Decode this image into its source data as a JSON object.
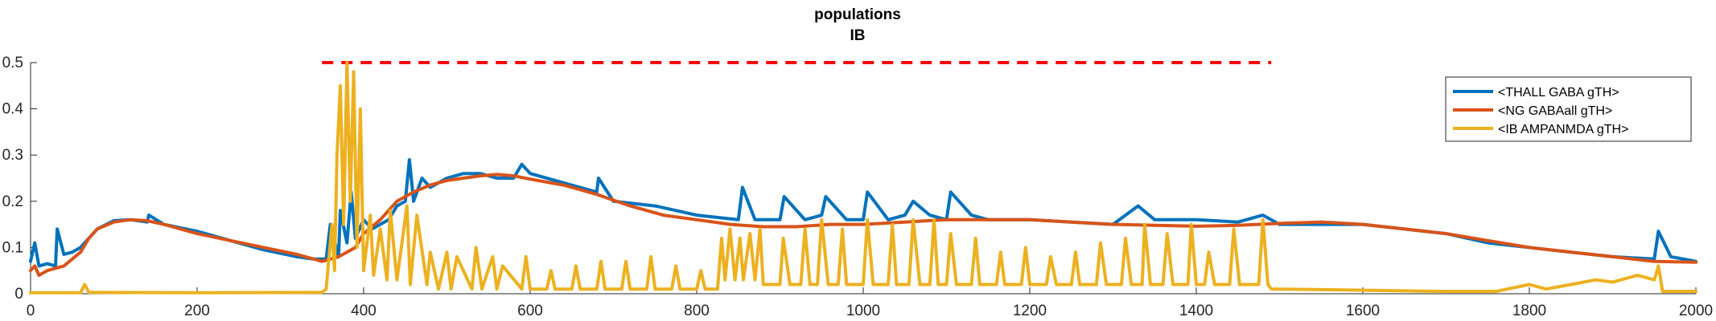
{
  "chart_data": {
    "type": "line",
    "title": "populations",
    "subtitle": "IB",
    "xlabel": "",
    "ylabel": "",
    "xlim": [
      0,
      2000
    ],
    "ylim": [
      0,
      0.5
    ],
    "grid": false,
    "legend_position": "top-right",
    "xticks": [
      {
        "value": 0,
        "label": "0"
      },
      {
        "value": 200,
        "label": "200"
      },
      {
        "value": 400,
        "label": "400"
      },
      {
        "value": 600,
        "label": "600"
      },
      {
        "value": 800,
        "label": "800"
      },
      {
        "value": 1000,
        "label": "1000"
      },
      {
        "value": 1200,
        "label": "1200"
      },
      {
        "value": 1400,
        "label": "1400"
      },
      {
        "value": 1600,
        "label": "1600"
      },
      {
        "value": 1800,
        "label": "1800"
      },
      {
        "value": 2000,
        "label": "2000"
      }
    ],
    "yticks": [
      {
        "value": 0,
        "label": "0"
      },
      {
        "value": 0.1,
        "label": "0.1"
      },
      {
        "value": 0.2,
        "label": "0.2"
      },
      {
        "value": 0.3,
        "label": "0.3"
      },
      {
        "value": 0.4,
        "label": "0.4"
      },
      {
        "value": 0.5,
        "label": "0.5"
      }
    ],
    "reference_line": {
      "y": 0.5,
      "x": [
        350,
        1490
      ],
      "color": "#ff0000",
      "style": "dashed"
    },
    "series": [
      {
        "name": "<THALL GABA gTH>",
        "color": "#0072bd",
        "x": [
          0,
          5,
          10,
          20,
          30,
          32,
          40,
          50,
          60,
          70,
          80,
          100,
          120,
          140,
          142,
          160,
          200,
          240,
          280,
          320,
          340,
          355,
          360,
          370,
          372,
          380,
          385,
          390,
          400,
          410,
          420,
          430,
          440,
          450,
          455,
          460,
          470,
          480,
          500,
          520,
          540,
          560,
          580,
          590,
          600,
          640,
          680,
          682,
          700,
          750,
          800,
          850,
          855,
          870,
          900,
          905,
          930,
          950,
          955,
          980,
          1000,
          1005,
          1030,
          1050,
          1060,
          1080,
          1100,
          1105,
          1130,
          1150,
          1200,
          1250,
          1300,
          1330,
          1350,
          1400,
          1450,
          1480,
          1500,
          1550,
          1600,
          1650,
          1700,
          1750,
          1800,
          1850,
          1900,
          1950,
          1955,
          1970,
          2000
        ],
        "y": [
          0.07,
          0.11,
          0.06,
          0.065,
          0.06,
          0.14,
          0.085,
          0.09,
          0.1,
          0.12,
          0.14,
          0.158,
          0.16,
          0.155,
          0.17,
          0.15,
          0.135,
          0.115,
          0.095,
          0.08,
          0.075,
          0.075,
          0.15,
          0.08,
          0.18,
          0.11,
          0.22,
          0.12,
          0.16,
          0.14,
          0.15,
          0.16,
          0.19,
          0.2,
          0.29,
          0.2,
          0.25,
          0.23,
          0.25,
          0.26,
          0.26,
          0.25,
          0.25,
          0.28,
          0.26,
          0.24,
          0.22,
          0.25,
          0.2,
          0.19,
          0.17,
          0.16,
          0.23,
          0.16,
          0.16,
          0.21,
          0.16,
          0.17,
          0.21,
          0.16,
          0.16,
          0.22,
          0.16,
          0.17,
          0.2,
          0.17,
          0.16,
          0.22,
          0.17,
          0.16,
          0.16,
          0.155,
          0.15,
          0.19,
          0.16,
          0.16,
          0.155,
          0.17,
          0.15,
          0.15,
          0.15,
          0.14,
          0.13,
          0.11,
          0.1,
          0.09,
          0.08,
          0.075,
          0.135,
          0.08,
          0.07
        ]
      },
      {
        "name": "<NG GABAall gTH>",
        "color": "#d95319",
        "x": [
          0,
          5,
          10,
          20,
          30,
          40,
          50,
          60,
          70,
          80,
          100,
          120,
          140,
          160,
          200,
          240,
          280,
          320,
          350,
          370,
          380,
          390,
          400,
          420,
          440,
          460,
          480,
          500,
          520,
          540,
          560,
          580,
          600,
          640,
          680,
          720,
          760,
          800,
          840,
          880,
          920,
          960,
          1000,
          1050,
          1100,
          1150,
          1200,
          1250,
          1300,
          1350,
          1400,
          1450,
          1500,
          1550,
          1600,
          1650,
          1700,
          1750,
          1800,
          1850,
          1900,
          1950,
          2000
        ],
        "y": [
          0.05,
          0.06,
          0.04,
          0.05,
          0.055,
          0.06,
          0.075,
          0.09,
          0.12,
          0.14,
          0.155,
          0.16,
          0.158,
          0.15,
          0.13,
          0.115,
          0.1,
          0.085,
          0.07,
          0.08,
          0.09,
          0.1,
          0.13,
          0.16,
          0.2,
          0.22,
          0.235,
          0.245,
          0.25,
          0.255,
          0.258,
          0.255,
          0.248,
          0.235,
          0.215,
          0.19,
          0.17,
          0.16,
          0.15,
          0.145,
          0.145,
          0.15,
          0.15,
          0.155,
          0.16,
          0.16,
          0.16,
          0.155,
          0.15,
          0.148,
          0.146,
          0.148,
          0.152,
          0.155,
          0.15,
          0.14,
          0.13,
          0.115,
          0.1,
          0.09,
          0.08,
          0.07,
          0.068
        ]
      },
      {
        "name": "<IB AMPANMDA gTH>",
        "color": "#edb120",
        "x": [
          0,
          60,
          65,
          70,
          200,
          350,
          355,
          362,
          365,
          368,
          372,
          376,
          380,
          384,
          388,
          392,
          396,
          400,
          408,
          412,
          420,
          428,
          432,
          440,
          452,
          456,
          464,
          476,
          480,
          490,
          500,
          505,
          512,
          530,
          535,
          542,
          555,
          560,
          567,
          590,
          595,
          600,
          620,
          625,
          630,
          650,
          655,
          660,
          680,
          685,
          690,
          710,
          715,
          720,
          740,
          745,
          750,
          770,
          775,
          780,
          800,
          805,
          810,
          825,
          830,
          834,
          840,
          846,
          852,
          856,
          864,
          870,
          876,
          880,
          900,
          904,
          912,
          925,
          930,
          936,
          945,
          950,
          958,
          970,
          975,
          980,
          1000,
          1005,
          1012,
          1030,
          1035,
          1040,
          1055,
          1060,
          1068,
          1080,
          1085,
          1090,
          1100,
          1105,
          1112,
          1130,
          1135,
          1140,
          1160,
          1165,
          1170,
          1190,
          1195,
          1200,
          1220,
          1225,
          1232,
          1250,
          1255,
          1260,
          1280,
          1285,
          1292,
          1310,
          1315,
          1322,
          1335,
          1338,
          1345,
          1360,
          1365,
          1372,
          1390,
          1394,
          1400,
          1410,
          1415,
          1422,
          1440,
          1445,
          1452,
          1475,
          1480,
          1486,
          1490,
          1500,
          1700,
          1760,
          1800,
          1820,
          1850,
          1880,
          1900,
          1930,
          1950,
          1955,
          1960,
          2000
        ],
        "y": [
          0.002,
          0.002,
          0.02,
          0.003,
          0.002,
          0.003,
          0.01,
          0.15,
          0.05,
          0.3,
          0.45,
          0.15,
          0.5,
          0.2,
          0.48,
          0.1,
          0.4,
          0.05,
          0.17,
          0.04,
          0.14,
          0.03,
          0.18,
          0.03,
          0.19,
          0.02,
          0.17,
          0.02,
          0.09,
          0.01,
          0.09,
          0.01,
          0.08,
          0.01,
          0.1,
          0.01,
          0.08,
          0.01,
          0.06,
          0.01,
          0.08,
          0.01,
          0.01,
          0.05,
          0.01,
          0.01,
          0.06,
          0.01,
          0.01,
          0.07,
          0.01,
          0.01,
          0.07,
          0.01,
          0.01,
          0.08,
          0.01,
          0.01,
          0.06,
          0.01,
          0.01,
          0.05,
          0.01,
          0.01,
          0.12,
          0.03,
          0.14,
          0.03,
          0.12,
          0.03,
          0.13,
          0.03,
          0.14,
          0.02,
          0.02,
          0.12,
          0.02,
          0.02,
          0.14,
          0.02,
          0.02,
          0.16,
          0.02,
          0.02,
          0.14,
          0.02,
          0.02,
          0.16,
          0.02,
          0.02,
          0.15,
          0.02,
          0.02,
          0.16,
          0.02,
          0.02,
          0.16,
          0.02,
          0.02,
          0.13,
          0.02,
          0.02,
          0.12,
          0.02,
          0.02,
          0.09,
          0.02,
          0.02,
          0.1,
          0.02,
          0.02,
          0.08,
          0.02,
          0.02,
          0.09,
          0.02,
          0.02,
          0.11,
          0.02,
          0.02,
          0.12,
          0.02,
          0.02,
          0.15,
          0.02,
          0.02,
          0.13,
          0.02,
          0.02,
          0.15,
          0.02,
          0.02,
          0.09,
          0.02,
          0.02,
          0.14,
          0.02,
          0.02,
          0.16,
          0.02,
          0.01,
          0.01,
          0.005,
          0.005,
          0.02,
          0.01,
          0.02,
          0.03,
          0.025,
          0.04,
          0.03,
          0.06,
          0.005,
          0.005
        ]
      }
    ]
  }
}
